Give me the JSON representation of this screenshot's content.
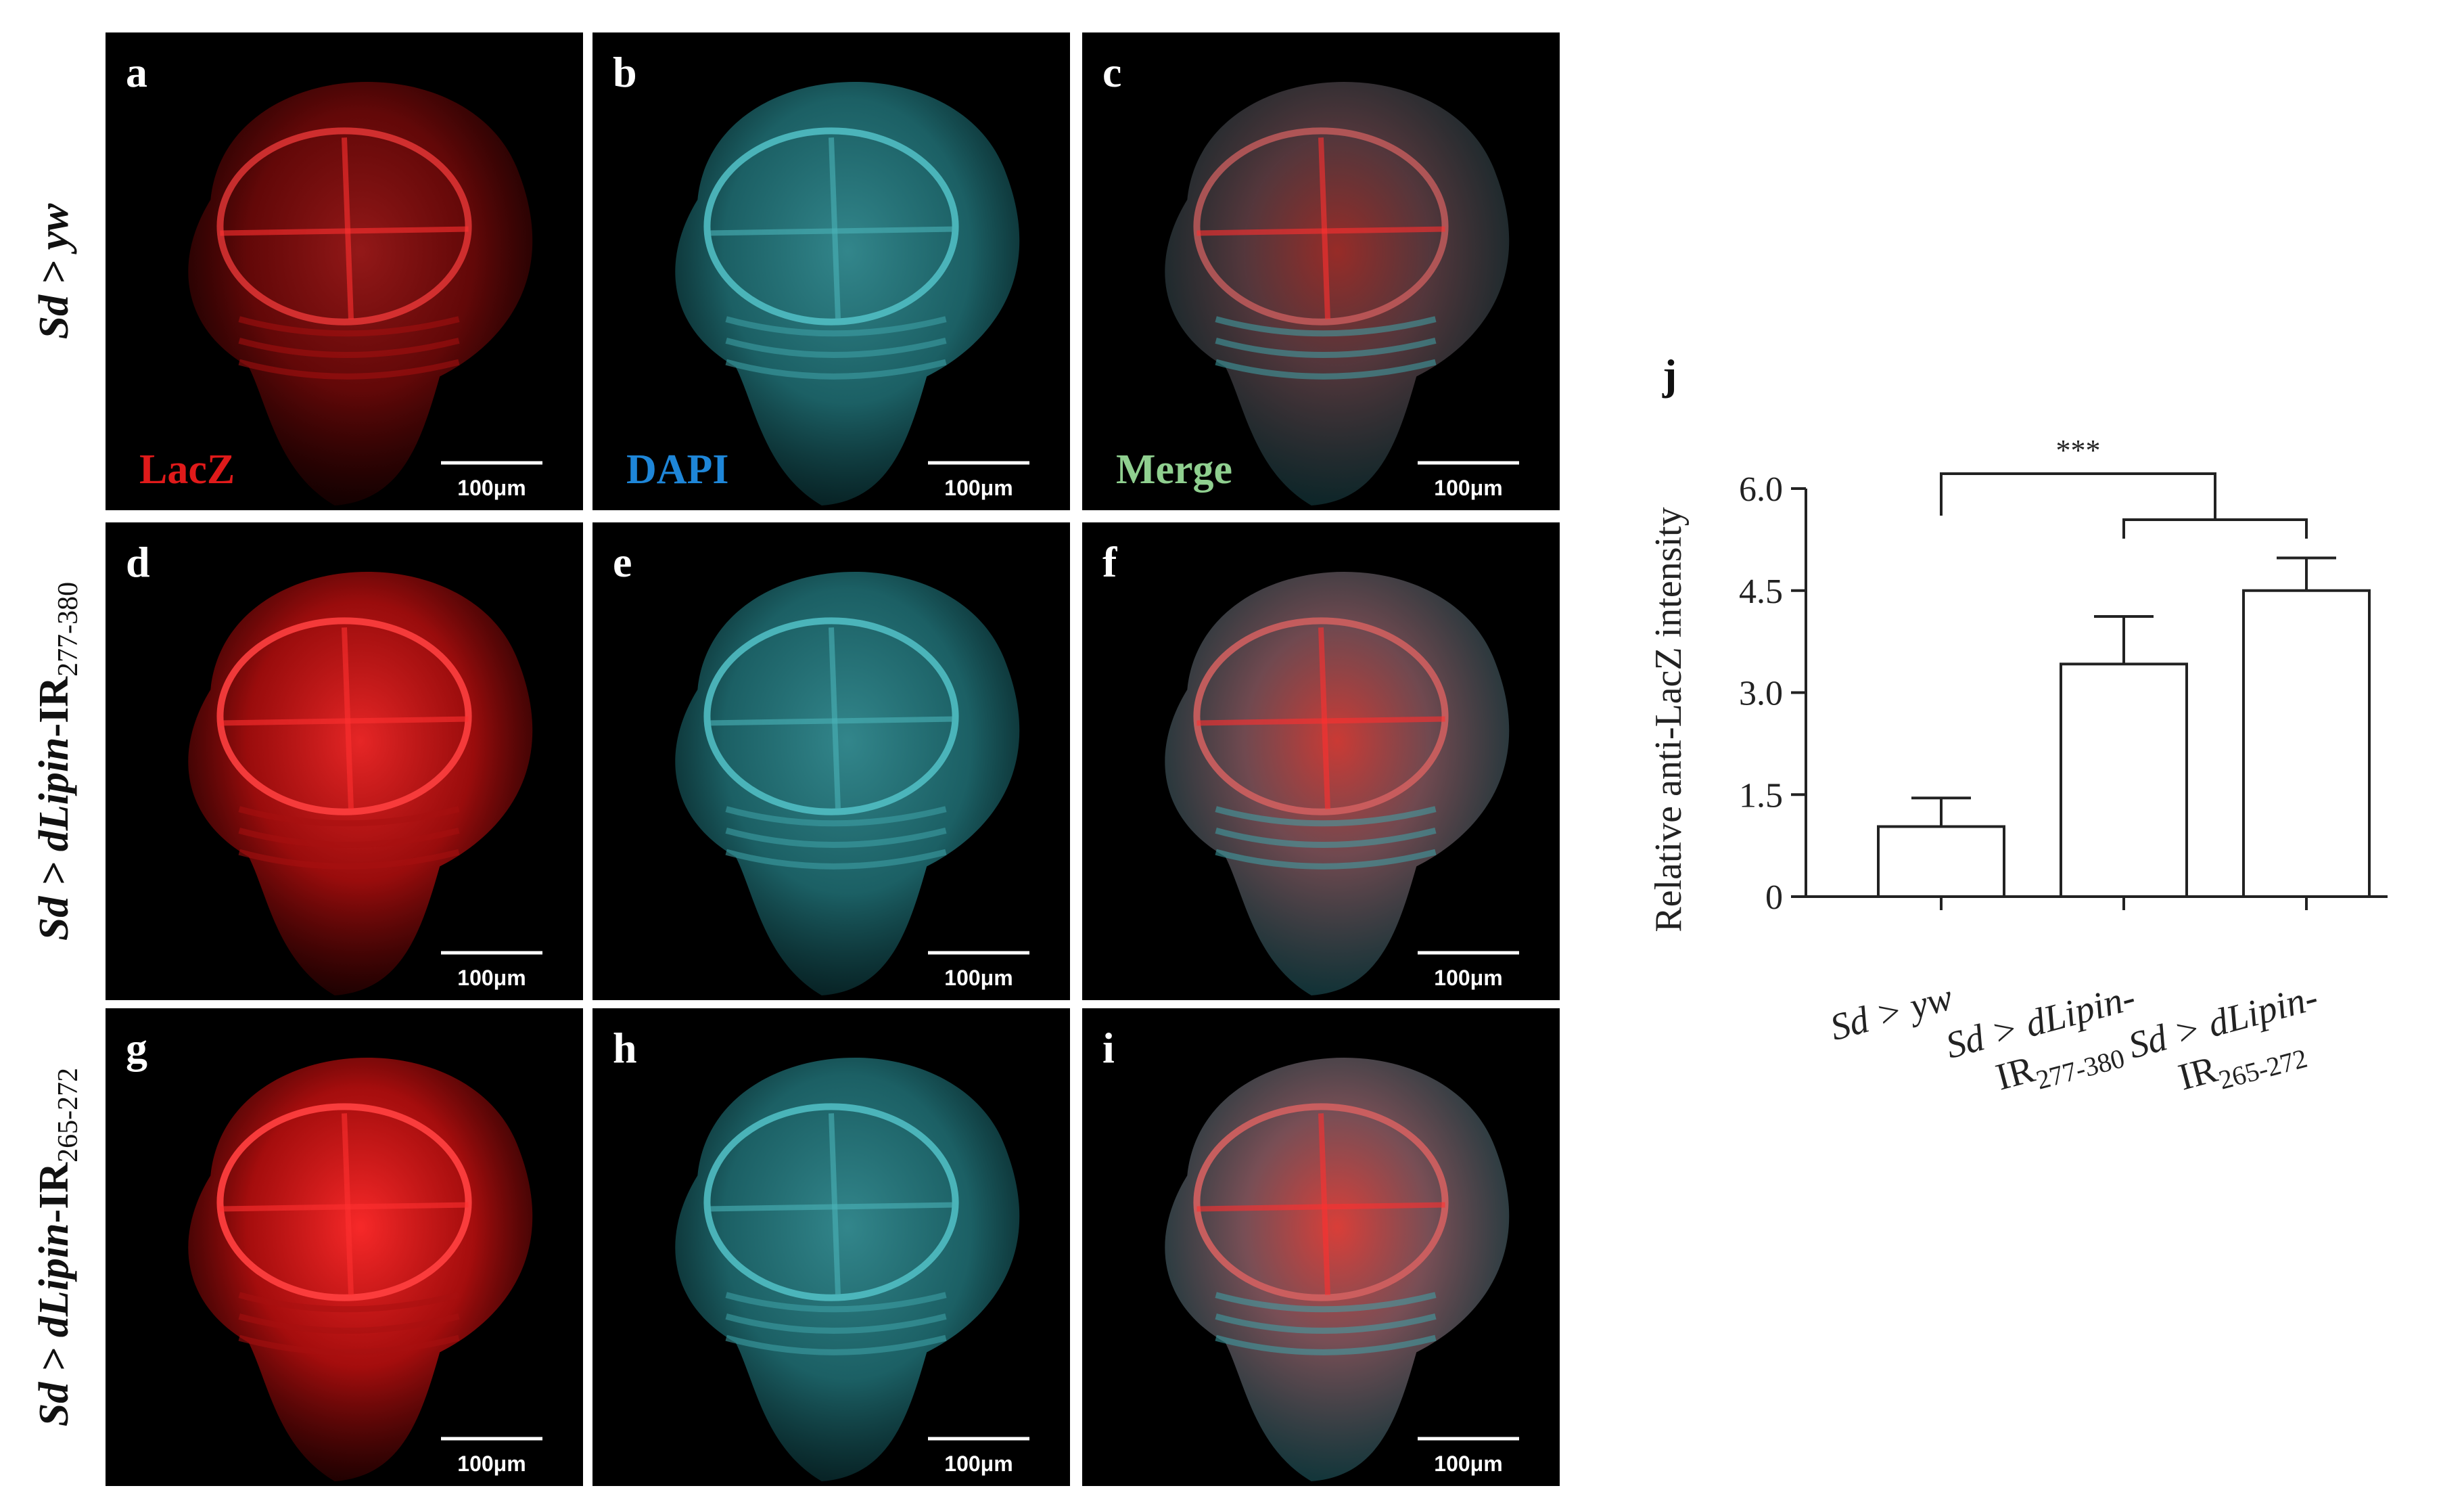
{
  "row_labels": [
    {
      "prefix": "Sd > ",
      "italic": "yw",
      "roman": "",
      "sub": ""
    },
    {
      "prefix": "Sd > ",
      "italic": "dLipin",
      "roman": "-IR",
      "sub": "277-380"
    },
    {
      "prefix": "Sd > ",
      "italic": "dLipin",
      "roman": "-IR",
      "sub": "265-272"
    }
  ],
  "channel_labels": [
    {
      "text": "LacZ",
      "color": "#e01a1a"
    },
    {
      "text": "DAPI",
      "color": "#1e86d8"
    },
    {
      "text": "Merge",
      "color": "#8fcf8f"
    }
  ],
  "panels": [
    {
      "letter": "a",
      "channel": "red",
      "intensity": 0.35,
      "scale": "100μm"
    },
    {
      "letter": "b",
      "channel": "cyan",
      "intensity": 0.8,
      "scale": "100μm"
    },
    {
      "letter": "c",
      "channel": "merge",
      "intensity": 0.5,
      "scale": "100μm"
    },
    {
      "letter": "d",
      "channel": "red",
      "intensity": 0.85,
      "scale": "100μm"
    },
    {
      "letter": "e",
      "channel": "cyan",
      "intensity": 0.8,
      "scale": "100μm"
    },
    {
      "letter": "f",
      "channel": "merge",
      "intensity": 0.85,
      "scale": "100μm"
    },
    {
      "letter": "g",
      "channel": "red",
      "intensity": 0.95,
      "scale": "100μm"
    },
    {
      "letter": "h",
      "channel": "cyan",
      "intensity": 0.8,
      "scale": "100μm"
    },
    {
      "letter": "i",
      "channel": "merge",
      "intensity": 0.95,
      "scale": "100μm"
    }
  ],
  "chart_data": {
    "type": "bar",
    "panel_letter": "j",
    "ylabel": "Relative anti-LacZ intensity",
    "ylim": [
      0,
      6.0
    ],
    "yticks": [
      "0",
      "1.5",
      "3.0",
      "4.5",
      "6.0"
    ],
    "ytick_values": [
      0,
      1.5,
      3.0,
      4.5,
      6.0
    ],
    "categories": [
      {
        "line1_italic": "Sd > yw",
        "line2_roman": "",
        "line2_sub": ""
      },
      {
        "line1_italic": "Sd > dLipin-",
        "line2_roman": "IR",
        "line2_sub": "277-380"
      },
      {
        "line1_italic": "Sd > dLipin-",
        "line2_roman": "IR",
        "line2_sub": "265-272"
      }
    ],
    "values": [
      1.03,
      3.42,
      4.5
    ],
    "errors": [
      0.42,
      0.7,
      0.48
    ],
    "significance": {
      "label": "***",
      "from": 0,
      "to": [
        1,
        2
      ]
    }
  }
}
